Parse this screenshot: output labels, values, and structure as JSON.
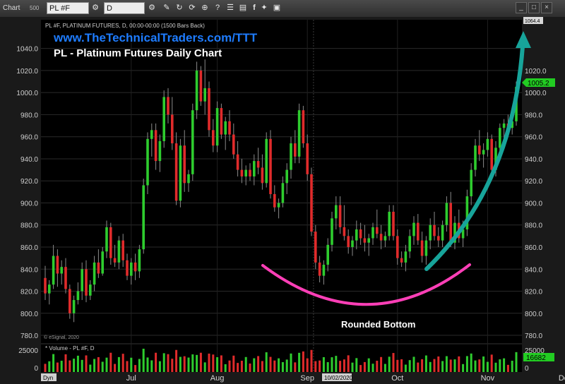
{
  "toolbar": {
    "window_label": "Chart",
    "window_badge": "500",
    "symbol": "PL #F",
    "interval": "D",
    "icons": [
      "settings-icon",
      "pencil-icon",
      "refresh-icon",
      "link-icon",
      "add-icon",
      "help-icon",
      "sliders-icon",
      "page-icon",
      "facebook-icon",
      "twitter-icon",
      "save-icon"
    ]
  },
  "colors": {
    "up": "#2ecc2e",
    "down": "#e02b2b",
    "background": "#000000",
    "arrow": "#17a49a",
    "curve": "#ff3fb7",
    "price_tag": "#22cc22"
  },
  "header": {
    "info": "PL #F, PLATINUM FUTURES, D, 00:00-00:00 (1500 Bars Back)",
    "website": "www.TheTechnicalTraders.com/TTT",
    "chart_title": "PL - Platinum Futures Daily Chart",
    "watermark": "© eSignal, 2020"
  },
  "chart_data": {
    "type": "candlestick",
    "y_ticks": [
      "1040.0",
      "1020.0",
      "1000.0",
      "980.0",
      "960.0",
      "940.0",
      "920.0",
      "900.0",
      "880.0",
      "860.0",
      "840.0",
      "820.0",
      "800.0",
      "780.0"
    ],
    "y_range": [
      773,
      1066
    ],
    "top_axis_label": "1064.4",
    "last_price_label": "1005.2",
    "months": [
      "Jul",
      "Aug",
      "Sep",
      "Oct",
      "Nov",
      "Dec"
    ],
    "date_marker": "10/02/2020",
    "dyn_label": "Dyn",
    "annotation": "Rounded Bottom",
    "volume": {
      "label": "* Volume - PL #F, D",
      "ticks": [
        "25000",
        "0"
      ],
      "right_ticks": [
        "25000",
        "0"
      ],
      "last_label": "16682",
      "range": [
        0,
        30000
      ]
    },
    "candles": [
      {
        "o": 832,
        "h": 843,
        "l": 812,
        "c": 818
      },
      {
        "o": 818,
        "h": 830,
        "l": 808,
        "c": 826
      },
      {
        "o": 826,
        "h": 862,
        "l": 822,
        "c": 852
      },
      {
        "o": 852,
        "h": 858,
        "l": 824,
        "c": 836
      },
      {
        "o": 836,
        "h": 848,
        "l": 826,
        "c": 842
      },
      {
        "o": 842,
        "h": 850,
        "l": 818,
        "c": 822
      },
      {
        "o": 822,
        "h": 826,
        "l": 795,
        "c": 800
      },
      {
        "o": 800,
        "h": 816,
        "l": 792,
        "c": 812
      },
      {
        "o": 812,
        "h": 828,
        "l": 808,
        "c": 820
      },
      {
        "o": 820,
        "h": 846,
        "l": 812,
        "c": 840
      },
      {
        "o": 840,
        "h": 848,
        "l": 810,
        "c": 816
      },
      {
        "o": 816,
        "h": 830,
        "l": 812,
        "c": 826
      },
      {
        "o": 826,
        "h": 852,
        "l": 820,
        "c": 846
      },
      {
        "o": 846,
        "h": 858,
        "l": 832,
        "c": 836
      },
      {
        "o": 836,
        "h": 860,
        "l": 834,
        "c": 856
      },
      {
        "o": 856,
        "h": 884,
        "l": 850,
        "c": 878
      },
      {
        "o": 878,
        "h": 882,
        "l": 844,
        "c": 850
      },
      {
        "o": 850,
        "h": 862,
        "l": 842,
        "c": 846
      },
      {
        "o": 846,
        "h": 870,
        "l": 840,
        "c": 866
      },
      {
        "o": 866,
        "h": 872,
        "l": 842,
        "c": 848
      },
      {
        "o": 848,
        "h": 854,
        "l": 830,
        "c": 834
      },
      {
        "o": 834,
        "h": 850,
        "l": 826,
        "c": 846
      },
      {
        "o": 846,
        "h": 854,
        "l": 830,
        "c": 838
      },
      {
        "o": 838,
        "h": 862,
        "l": 832,
        "c": 858
      },
      {
        "o": 858,
        "h": 922,
        "l": 854,
        "c": 916
      },
      {
        "o": 916,
        "h": 964,
        "l": 908,
        "c": 958
      },
      {
        "o": 958,
        "h": 972,
        "l": 942,
        "c": 966
      },
      {
        "o": 966,
        "h": 972,
        "l": 930,
        "c": 938
      },
      {
        "o": 938,
        "h": 962,
        "l": 928,
        "c": 956
      },
      {
        "o": 956,
        "h": 1002,
        "l": 950,
        "c": 996
      },
      {
        "o": 996,
        "h": 1004,
        "l": 972,
        "c": 980
      },
      {
        "o": 980,
        "h": 996,
        "l": 948,
        "c": 954
      },
      {
        "o": 954,
        "h": 964,
        "l": 898,
        "c": 902
      },
      {
        "o": 902,
        "h": 958,
        "l": 896,
        "c": 952
      },
      {
        "o": 952,
        "h": 966,
        "l": 910,
        "c": 918
      },
      {
        "o": 918,
        "h": 930,
        "l": 910,
        "c": 926
      },
      {
        "o": 926,
        "h": 990,
        "l": 920,
        "c": 984
      },
      {
        "o": 984,
        "h": 1028,
        "l": 976,
        "c": 1020
      },
      {
        "o": 1020,
        "h": 1024,
        "l": 988,
        "c": 992
      },
      {
        "o": 992,
        "h": 1030,
        "l": 980,
        "c": 1004
      },
      {
        "o": 1004,
        "h": 1010,
        "l": 960,
        "c": 966
      },
      {
        "o": 966,
        "h": 976,
        "l": 946,
        "c": 952
      },
      {
        "o": 952,
        "h": 992,
        "l": 946,
        "c": 986
      },
      {
        "o": 986,
        "h": 990,
        "l": 958,
        "c": 962
      },
      {
        "o": 962,
        "h": 978,
        "l": 948,
        "c": 974
      },
      {
        "o": 974,
        "h": 984,
        "l": 956,
        "c": 962
      },
      {
        "o": 962,
        "h": 972,
        "l": 940,
        "c": 944
      },
      {
        "o": 944,
        "h": 956,
        "l": 924,
        "c": 930
      },
      {
        "o": 930,
        "h": 940,
        "l": 918,
        "c": 924
      },
      {
        "o": 924,
        "h": 934,
        "l": 916,
        "c": 930
      },
      {
        "o": 930,
        "h": 936,
        "l": 920,
        "c": 924
      },
      {
        "o": 924,
        "h": 944,
        "l": 916,
        "c": 938
      },
      {
        "o": 938,
        "h": 950,
        "l": 926,
        "c": 932
      },
      {
        "o": 932,
        "h": 944,
        "l": 912,
        "c": 918
      },
      {
        "o": 918,
        "h": 964,
        "l": 914,
        "c": 958
      },
      {
        "o": 958,
        "h": 966,
        "l": 904,
        "c": 908
      },
      {
        "o": 908,
        "h": 916,
        "l": 892,
        "c": 896
      },
      {
        "o": 896,
        "h": 904,
        "l": 886,
        "c": 900
      },
      {
        "o": 900,
        "h": 924,
        "l": 896,
        "c": 918
      },
      {
        "o": 918,
        "h": 936,
        "l": 908,
        "c": 930
      },
      {
        "o": 930,
        "h": 960,
        "l": 922,
        "c": 954
      },
      {
        "o": 954,
        "h": 966,
        "l": 936,
        "c": 942
      },
      {
        "o": 942,
        "h": 990,
        "l": 936,
        "c": 984
      },
      {
        "o": 984,
        "h": 988,
        "l": 950,
        "c": 954
      },
      {
        "o": 954,
        "h": 962,
        "l": 920,
        "c": 926
      },
      {
        "o": 926,
        "h": 932,
        "l": 870,
        "c": 874
      },
      {
        "o": 874,
        "h": 880,
        "l": 840,
        "c": 846
      },
      {
        "o": 846,
        "h": 852,
        "l": 828,
        "c": 834
      },
      {
        "o": 834,
        "h": 848,
        "l": 826,
        "c": 844
      },
      {
        "o": 844,
        "h": 868,
        "l": 838,
        "c": 862
      },
      {
        "o": 862,
        "h": 892,
        "l": 856,
        "c": 886
      },
      {
        "o": 886,
        "h": 906,
        "l": 876,
        "c": 898
      },
      {
        "o": 898,
        "h": 906,
        "l": 872,
        "c": 878
      },
      {
        "o": 878,
        "h": 898,
        "l": 866,
        "c": 870
      },
      {
        "o": 870,
        "h": 876,
        "l": 854,
        "c": 860
      },
      {
        "o": 860,
        "h": 870,
        "l": 852,
        "c": 866
      },
      {
        "o": 866,
        "h": 884,
        "l": 858,
        "c": 876
      },
      {
        "o": 876,
        "h": 882,
        "l": 862,
        "c": 868
      },
      {
        "o": 868,
        "h": 880,
        "l": 856,
        "c": 864
      },
      {
        "o": 864,
        "h": 872,
        "l": 852,
        "c": 868
      },
      {
        "o": 868,
        "h": 882,
        "l": 862,
        "c": 878
      },
      {
        "o": 878,
        "h": 894,
        "l": 868,
        "c": 872
      },
      {
        "o": 872,
        "h": 880,
        "l": 858,
        "c": 866
      },
      {
        "o": 866,
        "h": 874,
        "l": 860,
        "c": 870
      },
      {
        "o": 870,
        "h": 898,
        "l": 866,
        "c": 892
      },
      {
        "o": 892,
        "h": 898,
        "l": 866,
        "c": 870
      },
      {
        "o": 870,
        "h": 876,
        "l": 844,
        "c": 850
      },
      {
        "o": 850,
        "h": 856,
        "l": 842,
        "c": 846
      },
      {
        "o": 846,
        "h": 862,
        "l": 838,
        "c": 856
      },
      {
        "o": 856,
        "h": 876,
        "l": 850,
        "c": 870
      },
      {
        "o": 870,
        "h": 888,
        "l": 862,
        "c": 882
      },
      {
        "o": 882,
        "h": 890,
        "l": 862,
        "c": 866
      },
      {
        "o": 866,
        "h": 874,
        "l": 846,
        "c": 852
      },
      {
        "o": 852,
        "h": 870,
        "l": 844,
        "c": 866
      },
      {
        "o": 866,
        "h": 886,
        "l": 858,
        "c": 880
      },
      {
        "o": 880,
        "h": 892,
        "l": 866,
        "c": 870
      },
      {
        "o": 870,
        "h": 878,
        "l": 860,
        "c": 866
      },
      {
        "o": 866,
        "h": 884,
        "l": 860,
        "c": 880
      },
      {
        "o": 880,
        "h": 906,
        "l": 874,
        "c": 900
      },
      {
        "o": 900,
        "h": 910,
        "l": 860,
        "c": 864
      },
      {
        "o": 864,
        "h": 888,
        "l": 858,
        "c": 882
      },
      {
        "o": 882,
        "h": 894,
        "l": 864,
        "c": 868
      },
      {
        "o": 868,
        "h": 884,
        "l": 860,
        "c": 876
      },
      {
        "o": 876,
        "h": 912,
        "l": 870,
        "c": 906
      },
      {
        "o": 906,
        "h": 936,
        "l": 898,
        "c": 930
      },
      {
        "o": 930,
        "h": 958,
        "l": 924,
        "c": 952
      },
      {
        "o": 952,
        "h": 966,
        "l": 938,
        "c": 944
      },
      {
        "o": 944,
        "h": 954,
        "l": 932,
        "c": 948
      },
      {
        "o": 948,
        "h": 964,
        "l": 942,
        "c": 958
      },
      {
        "o": 958,
        "h": 962,
        "l": 926,
        "c": 930
      },
      {
        "o": 930,
        "h": 956,
        "l": 924,
        "c": 950
      },
      {
        "o": 950,
        "h": 972,
        "l": 944,
        "c": 968
      },
      {
        "o": 968,
        "h": 976,
        "l": 956,
        "c": 972
      },
      {
        "o": 972,
        "h": 980,
        "l": 962,
        "c": 968
      },
      {
        "o": 968,
        "h": 978,
        "l": 962,
        "c": 974
      },
      {
        "o": 974,
        "h": 1010,
        "l": 970,
        "c": 1005.2
      }
    ]
  }
}
